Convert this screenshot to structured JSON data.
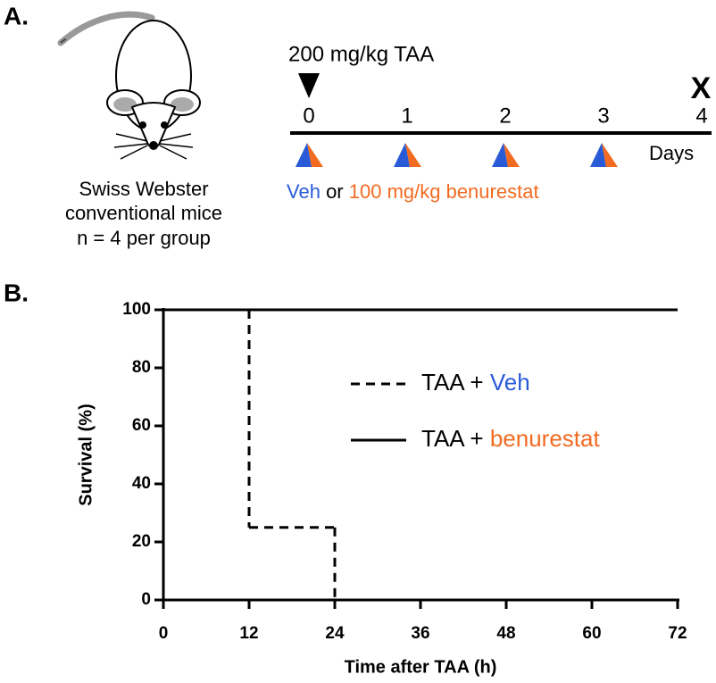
{
  "panel_a": {
    "label": "A.",
    "dose": "200 mg/kg TAA",
    "endpoint": "X",
    "days": [
      0,
      1,
      2,
      3,
      4
    ],
    "days_label": "Days",
    "mouse_lines": [
      "Swiss Webster",
      "conventional mice",
      "n = 4 per group"
    ],
    "treatment": {
      "vehicle": "Veh",
      "joiner": "or",
      "drug": "100 mg/kg benurestat"
    }
  },
  "panel_b_label": "B.",
  "chart_data": {
    "type": "step",
    "x_label": "Time after TAA (h)",
    "y_label": "Survival (%)",
    "x": [
      0,
      12,
      24,
      72
    ],
    "series": [
      {
        "name_parts": [
          "TAA +",
          "Veh"
        ],
        "name_colors": [
          "#000000",
          "#2a5bd7"
        ],
        "color": "#000000",
        "dash": true,
        "values": [
          100,
          25,
          0,
          null
        ]
      },
      {
        "name_parts": [
          "TAA +",
          "benurestat"
        ],
        "name_colors": [
          "#000000",
          "#f26b21"
        ],
        "color": "#000000",
        "dash": false,
        "values": [
          100,
          100,
          100,
          100
        ]
      }
    ],
    "xlim": [
      0,
      72
    ],
    "xticks": [
      0,
      12,
      24,
      36,
      48,
      60,
      72
    ],
    "ylim": [
      0,
      100
    ],
    "yticks": [
      0,
      20,
      40,
      60,
      80,
      100
    ]
  }
}
